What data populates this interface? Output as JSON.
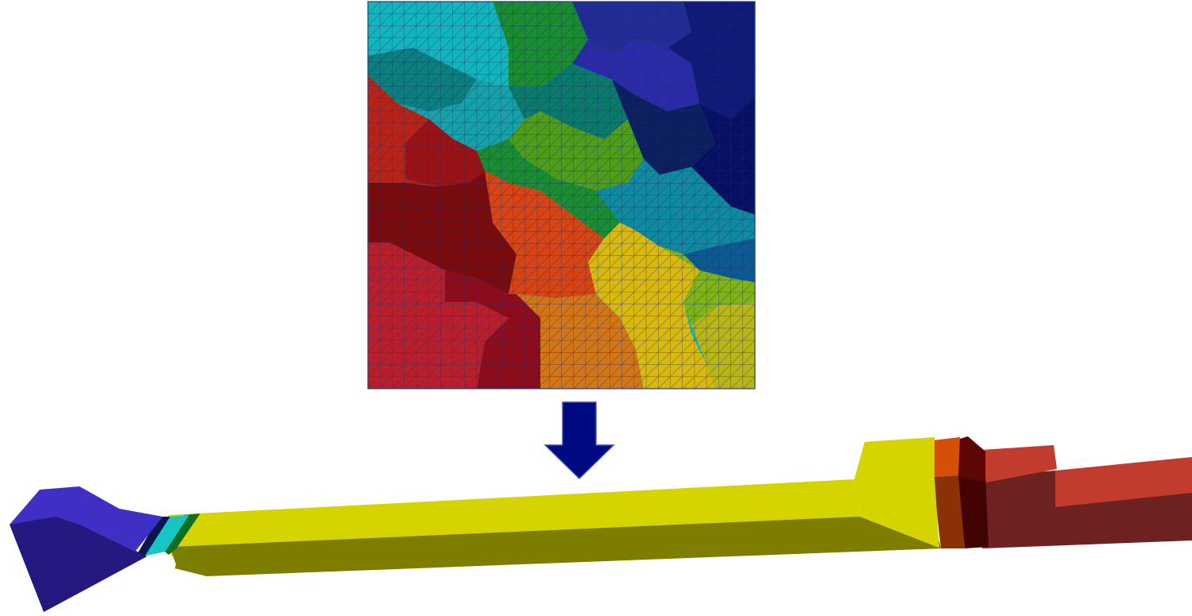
{
  "figure": {
    "mesh_panel": {
      "grid_cells": 32,
      "triangulated": true,
      "partition_colors": [
        "#13b5bd",
        "#0c7f7f",
        "#1a8d30",
        "#222c96",
        "#2b2aa8",
        "#0f1a78",
        "#b92316",
        "#9c1212",
        "#16a2a8",
        "#4f9e1a",
        "#0b1f5e",
        "#070f62",
        "#7b0a0a",
        "#d84512",
        "#108a9e",
        "#0d5a92",
        "#b91f2a",
        "#8e0c1a",
        "#d37616",
        "#d9b90e",
        "#7fb318",
        "#b9b618",
        "#0a7a6a",
        "#2a3ab0"
      ]
    },
    "arrow": {
      "color": "#000a80",
      "direction": "down",
      "glyph": "arrow-down-icon"
    },
    "part_3d": {
      "colors": {
        "head_top": "#3f2fc4",
        "head_side": "#23197f",
        "ring_dark": "#0b1550",
        "ring_cyan": "#17c6c0",
        "ring_green": "#0f6e22",
        "shaft_top": "#d5d300",
        "shaft_side": "#7d7d00",
        "band_orange": "#d54f05",
        "band_orange_side": "#8a3205",
        "band_dark": "#5e0606",
        "band_dark_side": "#420303",
        "tail_top": "#c23b2f",
        "tail_side": "#6e2121"
      }
    }
  }
}
